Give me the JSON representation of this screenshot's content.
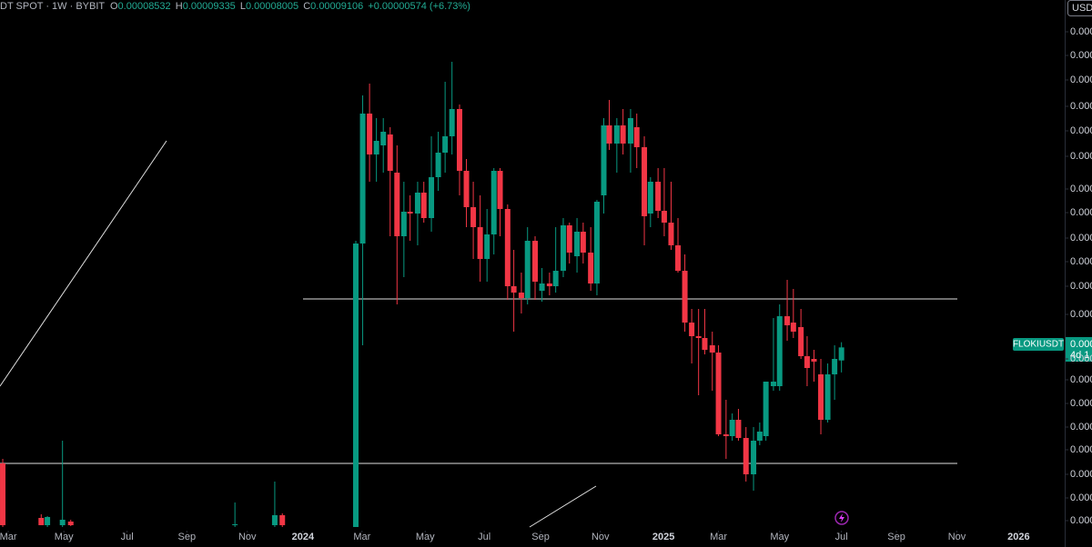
{
  "header": {
    "symbol": "DT SPOT · 1W · BYBIT",
    "o_label": "O",
    "h_label": "H",
    "l_label": "L",
    "c_label": "C",
    "change": "+0.00000574 (+6.73%)"
  },
  "chart_data": {
    "type": "candlestick",
    "currency": "USD",
    "symbol_tag": "FLOKIUSDT",
    "price_tag": "0.000",
    "countdown": "4d 1",
    "up_color": "#089981",
    "down_color": "#f23645",
    "xlim": [
      0,
      155
    ],
    "xticks": [
      {
        "value": 1.2,
        "label": "Mar"
      },
      {
        "value": 9.3,
        "label": "May"
      },
      {
        "value": 18.5,
        "label": "Jul"
      },
      {
        "value": 27.2,
        "label": "Sep"
      },
      {
        "value": 36.0,
        "label": "Nov"
      },
      {
        "value": 44.1,
        "label": "2024"
      },
      {
        "value": 52.7,
        "label": "Mar"
      },
      {
        "value": 61.9,
        "label": "May"
      },
      {
        "value": 70.5,
        "label": "Jul"
      },
      {
        "value": 78.7,
        "label": "Sep"
      },
      {
        "value": 87.4,
        "label": "Nov"
      },
      {
        "value": 96.6,
        "label": "2025"
      },
      {
        "value": 104.6,
        "label": "Mar"
      },
      {
        "value": 113.5,
        "label": "May"
      },
      {
        "value": 122.5,
        "label": "Jul"
      },
      {
        "value": 130.5,
        "label": "Sep"
      },
      {
        "value": 139.3,
        "label": "Nov"
      },
      {
        "value": 148.3,
        "label": "2026"
      }
    ],
    "ylim": [
      1.2e-05,
      0.000244
    ],
    "yticks": [
      {
        "value": 0.00023,
        "label": "0.000"
      },
      {
        "value": 0.0002196,
        "label": "0.000"
      },
      {
        "value": 0.0002088,
        "label": "0.000"
      },
      {
        "value": 0.0001972,
        "label": "0.000"
      },
      {
        "value": 0.0001864,
        "label": "0.000"
      },
      {
        "value": 0.0001752,
        "label": "0.000"
      },
      {
        "value": 0.0001608,
        "label": "0.000"
      },
      {
        "value": 0.0001504,
        "label": "0.000"
      },
      {
        "value": 0.0001392,
        "label": "0.000"
      },
      {
        "value": 0.0001288,
        "label": "0.000"
      },
      {
        "value": 0.000118,
        "label": "0.000"
      },
      {
        "value": 0.0001056,
        "label": "0.000"
      },
      {
        "value": 8.6e-05,
        "label": "0.000"
      },
      {
        "value": 7.68e-05,
        "label": "0.000"
      },
      {
        "value": 6.64e-05,
        "label": "0.000"
      },
      {
        "value": 5.6e-05,
        "label": "0.000"
      },
      {
        "value": 4.6e-05,
        "label": "0.000"
      },
      {
        "value": 3.52e-05,
        "label": "0.000"
      },
      {
        "value": 2.48e-05,
        "label": "0.000"
      },
      {
        "value": 1.48e-05,
        "label": "0.000"
      }
    ],
    "levels": [
      0.0001124,
      4e-05
    ],
    "candles": [
      {
        "x": 0.4,
        "o": 4e-05,
        "h": 4.2e-05,
        "l": 1.2e-05,
        "c": 1.28e-05
      },
      {
        "x": 6.0,
        "o": 1.6e-05,
        "h": 1.76e-05,
        "l": 1.28e-05,
        "c": 1.28e-05
      },
      {
        "x": 6.9,
        "o": 1.28e-05,
        "h": 1.68e-05,
        "l": 1.2e-05,
        "c": 1.64e-05
      },
      {
        "x": 9.1,
        "o": 1.28e-05,
        "h": 5e-05,
        "l": 1.2e-05,
        "c": 1.52e-05
      },
      {
        "x": 10.3,
        "o": 1.44e-05,
        "h": 1.52e-05,
        "l": 1.24e-05,
        "c": 1.28e-05
      },
      {
        "x": 34.2,
        "o": 1.28e-05,
        "h": 2.28e-05,
        "l": 1.2e-05,
        "c": 1.32e-05
      },
      {
        "x": 40.0,
        "o": 1.28e-05,
        "h": 3.2e-05,
        "l": 1.2e-05,
        "c": 1.72e-05
      },
      {
        "x": 41.1,
        "o": 1.72e-05,
        "h": 1.8e-05,
        "l": 1.2e-05,
        "c": 1.28e-05
      },
      {
        "x": 51.8,
        "o": 1.2e-05,
        "h": 0.000138,
        "l": 1.2e-05,
        "c": 0.0001368
      },
      {
        "x": 52.8,
        "o": 0.0001368,
        "h": 0.000202,
        "l": 9.2e-05,
        "c": 0.000194
      },
      {
        "x": 53.8,
        "o": 0.000194,
        "h": 0.0002072,
        "l": 0.000164,
        "c": 0.000176
      },
      {
        "x": 54.8,
        "o": 0.000176,
        "h": 0.000192,
        "l": 0.000164,
        "c": 0.000182
      },
      {
        "x": 55.8,
        "o": 0.00018,
        "h": 0.000192,
        "l": 0.000168,
        "c": 0.000186
      },
      {
        "x": 56.8,
        "o": 0.0001848,
        "h": 0.000188,
        "l": 0.00014,
        "c": 0.0001688
      },
      {
        "x": 57.8,
        "o": 0.000168,
        "h": 0.00018,
        "l": 0.00011,
        "c": 0.00014
      },
      {
        "x": 58.8,
        "o": 0.00014,
        "h": 0.000164,
        "l": 0.000122,
        "c": 0.0001508
      },
      {
        "x": 59.7,
        "o": 0.0001508,
        "h": 0.000158,
        "l": 0.000138,
        "c": 0.00015
      },
      {
        "x": 60.8,
        "o": 0.00015,
        "h": 0.000164,
        "l": 0.000136,
        "c": 0.0001592
      },
      {
        "x": 61.7,
        "o": 0.0001592,
        "h": 0.000164,
        "l": 0.000146,
        "c": 0.000148
      },
      {
        "x": 62.8,
        "o": 0.000148,
        "h": 0.000184,
        "l": 0.000142,
        "c": 0.000166
      },
      {
        "x": 63.8,
        "o": 0.000166,
        "h": 0.000186,
        "l": 0.00016,
        "c": 0.0001768
      },
      {
        "x": 64.8,
        "o": 0.0001768,
        "h": 0.000208,
        "l": 0.000168,
        "c": 0.000184
      },
      {
        "x": 65.8,
        "o": 0.000184,
        "h": 0.0002168,
        "l": 0.000176,
        "c": 0.000196
      },
      {
        "x": 66.9,
        "o": 0.000196,
        "h": 0.000198,
        "l": 0.000158,
        "c": 0.0001688
      },
      {
        "x": 67.9,
        "o": 0.0001688,
        "h": 0.000174,
        "l": 0.000144,
        "c": 0.0001528
      },
      {
        "x": 68.9,
        "o": 0.0001528,
        "h": 0.000164,
        "l": 0.00013,
        "c": 0.000144
      },
      {
        "x": 69.9,
        "o": 0.000144,
        "h": 0.000158,
        "l": 0.00012,
        "c": 0.00013
      },
      {
        "x": 70.9,
        "o": 0.00013,
        "h": 0.000152,
        "l": 0.00012,
        "c": 0.0001408
      },
      {
        "x": 71.9,
        "o": 0.0001408,
        "h": 0.00017,
        "l": 0.000132,
        "c": 0.0001688
      },
      {
        "x": 72.8,
        "o": 0.0001688,
        "h": 0.00017,
        "l": 0.00014,
        "c": 0.000152
      },
      {
        "x": 73.9,
        "o": 0.000152,
        "h": 0.000154,
        "l": 0.000112,
        "c": 0.000118
      },
      {
        "x": 74.8,
        "o": 0.000118,
        "h": 0.000134,
        "l": 9.8e-05,
        "c": 0.0001152
      },
      {
        "x": 75.9,
        "o": 0.0001152,
        "h": 0.000124,
        "l": 0.000106,
        "c": 0.0001128
      },
      {
        "x": 76.8,
        "o": 0.0001128,
        "h": 0.000144,
        "l": 0.00011,
        "c": 0.000138
      },
      {
        "x": 77.9,
        "o": 0.000138,
        "h": 0.00014,
        "l": 0.000112,
        "c": 0.00012
      },
      {
        "x": 78.9,
        "o": 0.000116,
        "h": 0.000126,
        "l": 0.0001112,
        "c": 0.0001192
      },
      {
        "x": 80.0,
        "o": 0.0001192,
        "h": 0.000124,
        "l": 0.000114,
        "c": 0.000118
      },
      {
        "x": 80.9,
        "o": 0.000118,
        "h": 0.000144,
        "l": 0.0001152,
        "c": 0.0001248
      },
      {
        "x": 82.0,
        "o": 0.0001248,
        "h": 0.000148,
        "l": 0.000122,
        "c": 0.0001448
      },
      {
        "x": 82.9,
        "o": 0.0001448,
        "h": 0.000146,
        "l": 0.000128,
        "c": 0.0001328
      },
      {
        "x": 84.0,
        "o": 0.0001312,
        "h": 0.000148,
        "l": 0.000124,
        "c": 0.000142
      },
      {
        "x": 84.9,
        "o": 0.000142,
        "h": 0.000146,
        "l": 0.000128,
        "c": 0.0001328
      },
      {
        "x": 86.0,
        "o": 0.0001328,
        "h": 0.000144,
        "l": 0.000116,
        "c": 0.0001192
      },
      {
        "x": 86.9,
        "o": 0.0001192,
        "h": 0.000156,
        "l": 0.000114,
        "c": 0.0001552
      },
      {
        "x": 87.9,
        "o": 0.000158,
        "h": 0.000192,
        "l": 0.00015,
        "c": 0.0001888
      },
      {
        "x": 88.7,
        "o": 0.0001888,
        "h": 0.0002,
        "l": 0.000178,
        "c": 0.0001808
      },
      {
        "x": 89.8,
        "o": 0.0001808,
        "h": 0.000192,
        "l": 0.000168,
        "c": 0.0001888
      },
      {
        "x": 90.7,
        "o": 0.0001888,
        "h": 0.000196,
        "l": 0.000176,
        "c": 0.0001808
      },
      {
        "x": 91.8,
        "o": 0.0001808,
        "h": 0.000196,
        "l": 0.000168,
        "c": 0.000192
      },
      {
        "x": 92.7,
        "o": 0.000188,
        "h": 0.000194,
        "l": 0.00017,
        "c": 0.0001792
      },
      {
        "x": 93.8,
        "o": 0.0001792,
        "h": 0.000184,
        "l": 0.000136,
        "c": 0.0001488
      },
      {
        "x": 94.7,
        "o": 0.00015,
        "h": 0.000166,
        "l": 0.000144,
        "c": 0.000164
      },
      {
        "x": 95.8,
        "o": 0.000164,
        "h": 0.00017,
        "l": 0.000148,
        "c": 0.0001512
      },
      {
        "x": 96.7,
        "o": 0.0001512,
        "h": 0.00017,
        "l": 0.00014,
        "c": 0.000146
      },
      {
        "x": 97.7,
        "o": 0.000146,
        "h": 0.000164,
        "l": 0.000134,
        "c": 0.000136
      },
      {
        "x": 98.7,
        "o": 0.000136,
        "h": 0.000148,
        "l": 0.000124,
        "c": 0.0001248
      },
      {
        "x": 99.7,
        "o": 0.0001248,
        "h": 0.000132,
        "l": 9.8e-05,
        "c": 0.000102
      },
      {
        "x": 100.7,
        "o": 0.000102,
        "h": 0.000108,
        "l": 8.4e-05,
        "c": 9.6e-05
      },
      {
        "x": 101.7,
        "o": 9.6e-05,
        "h": 0.000108,
        "l": 7e-05,
        "c": 9.52e-05
      },
      {
        "x": 102.6,
        "o": 9.52e-05,
        "h": 0.000108,
        "l": 8.8e-05,
        "c": 9e-05
      },
      {
        "x": 103.7,
        "o": 9.2e-05,
        "h": 9.8e-05,
        "l": 7.2e-05,
        "c": 8.88e-05
      },
      {
        "x": 104.6,
        "o": 8.88e-05,
        "h": 9.2e-05,
        "l": 5.2e-05,
        "c": 5.28e-05
      },
      {
        "x": 105.7,
        "o": 5.28e-05,
        "h": 6.8e-05,
        "l": 4.2e-05,
        "c": 5.2e-05
      },
      {
        "x": 106.6,
        "o": 5.2e-05,
        "h": 6.2e-05,
        "l": 5e-05,
        "c": 5.92e-05
      },
      {
        "x": 107.5,
        "o": 5.92e-05,
        "h": 6.4e-05,
        "l": 5e-05,
        "c": 5.12e-05
      },
      {
        "x": 108.6,
        "o": 5.12e-05,
        "h": 5.6e-05,
        "l": 3.2e-05,
        "c": 3.52e-05
      },
      {
        "x": 109.7,
        "o": 3.52e-05,
        "h": 5.6e-05,
        "l": 2.8e-05,
        "c": 5e-05
      },
      {
        "x": 110.6,
        "o": 5e-05,
        "h": 5.8e-05,
        "l": 4.8e-05,
        "c": 5.4e-05
      },
      {
        "x": 111.5,
        "o": 5.2e-05,
        "h": 7.6e-05,
        "l": 5e-05,
        "c": 7.6e-05
      },
      {
        "x": 112.6,
        "o": 7.4e-05,
        "h": 0.000104,
        "l": 7.2e-05,
        "c": 7.6e-05
      },
      {
        "x": 113.5,
        "o": 7.4e-05,
        "h": 0.00011,
        "l": 7.2e-05,
        "c": 0.0001048
      },
      {
        "x": 114.6,
        "o": 0.0001048,
        "h": 0.0001208,
        "l": 9.4e-05,
        "c": 0.0001008
      },
      {
        "x": 115.5,
        "o": 0.000102,
        "h": 0.0001168,
        "l": 9.52e-05,
        "c": 9.8e-05
      },
      {
        "x": 116.6,
        "o": 0.0001,
        "h": 0.000108,
        "l": 8.6e-05,
        "c": 8.72e-05
      },
      {
        "x": 117.5,
        "o": 8.72e-05,
        "h": 9.6e-05,
        "l": 7.4e-05,
        "c": 8.2e-05
      },
      {
        "x": 118.5,
        "o": 8.6e-05,
        "h": 9e-05,
        "l": 7.6e-05,
        "c": 8.48e-05
      },
      {
        "x": 119.5,
        "o": 7.92e-05,
        "h": 8.6e-05,
        "l": 5.28e-05,
        "c": 5.92e-05
      },
      {
        "x": 120.5,
        "o": 5.92e-05,
        "h": 8.4e-05,
        "l": 5.8e-05,
        "c": 7.92e-05
      },
      {
        "x": 121.5,
        "o": 7.92e-05,
        "h": 9.2e-05,
        "l": 6.8e-05,
        "c": 8.6e-05
      },
      {
        "x": 122.5,
        "o": 8.532e-05,
        "h": 9.335e-05,
        "l": 8.005e-05,
        "c": 9.106e-05
      }
    ]
  }
}
